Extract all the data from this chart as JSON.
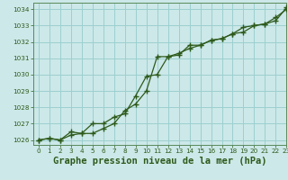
{
  "title": "Graphe pression niveau de la mer (hPa)",
  "background_color": "#cce8e8",
  "grid_color": "#9dcfcf",
  "line_color": "#2d5a1b",
  "xlim": [
    -0.5,
    23
  ],
  "ylim": [
    1025.7,
    1034.4
  ],
  "yticks": [
    1026,
    1027,
    1028,
    1029,
    1030,
    1031,
    1032,
    1033,
    1034
  ],
  "xticks": [
    0,
    1,
    2,
    3,
    4,
    5,
    6,
    7,
    8,
    9,
    10,
    11,
    12,
    13,
    14,
    15,
    16,
    17,
    18,
    19,
    20,
    21,
    22,
    23
  ],
  "series1_x": [
    0,
    1,
    2,
    3,
    4,
    5,
    6,
    7,
    8,
    9,
    10,
    11,
    12,
    13,
    14,
    15,
    16,
    17,
    18,
    19,
    20,
    21,
    22,
    23
  ],
  "series1_y": [
    1026.0,
    1026.1,
    1026.0,
    1026.3,
    1026.4,
    1026.4,
    1026.7,
    1027.0,
    1027.8,
    1028.2,
    1029.0,
    1031.1,
    1031.1,
    1031.3,
    1031.6,
    1031.8,
    1032.1,
    1032.2,
    1032.5,
    1032.9,
    1033.0,
    1033.1,
    1033.3,
    1034.1
  ],
  "series2_x": [
    0,
    1,
    2,
    3,
    4,
    5,
    6,
    7,
    8,
    9,
    10,
    11,
    12,
    13,
    14,
    15,
    16,
    17,
    18,
    19,
    20,
    21,
    22,
    23
  ],
  "series2_y": [
    1026.0,
    1026.1,
    1026.0,
    1026.5,
    1026.4,
    1027.0,
    1027.0,
    1027.4,
    1027.6,
    1028.7,
    1029.9,
    1030.0,
    1031.1,
    1031.2,
    1031.8,
    1031.8,
    1032.1,
    1032.2,
    1032.5,
    1032.6,
    1033.0,
    1033.1,
    1033.5,
    1034.0
  ],
  "title_fontsize": 7.5,
  "tick_fontsize": 5.2,
  "tick_color": "#2d5a1b"
}
